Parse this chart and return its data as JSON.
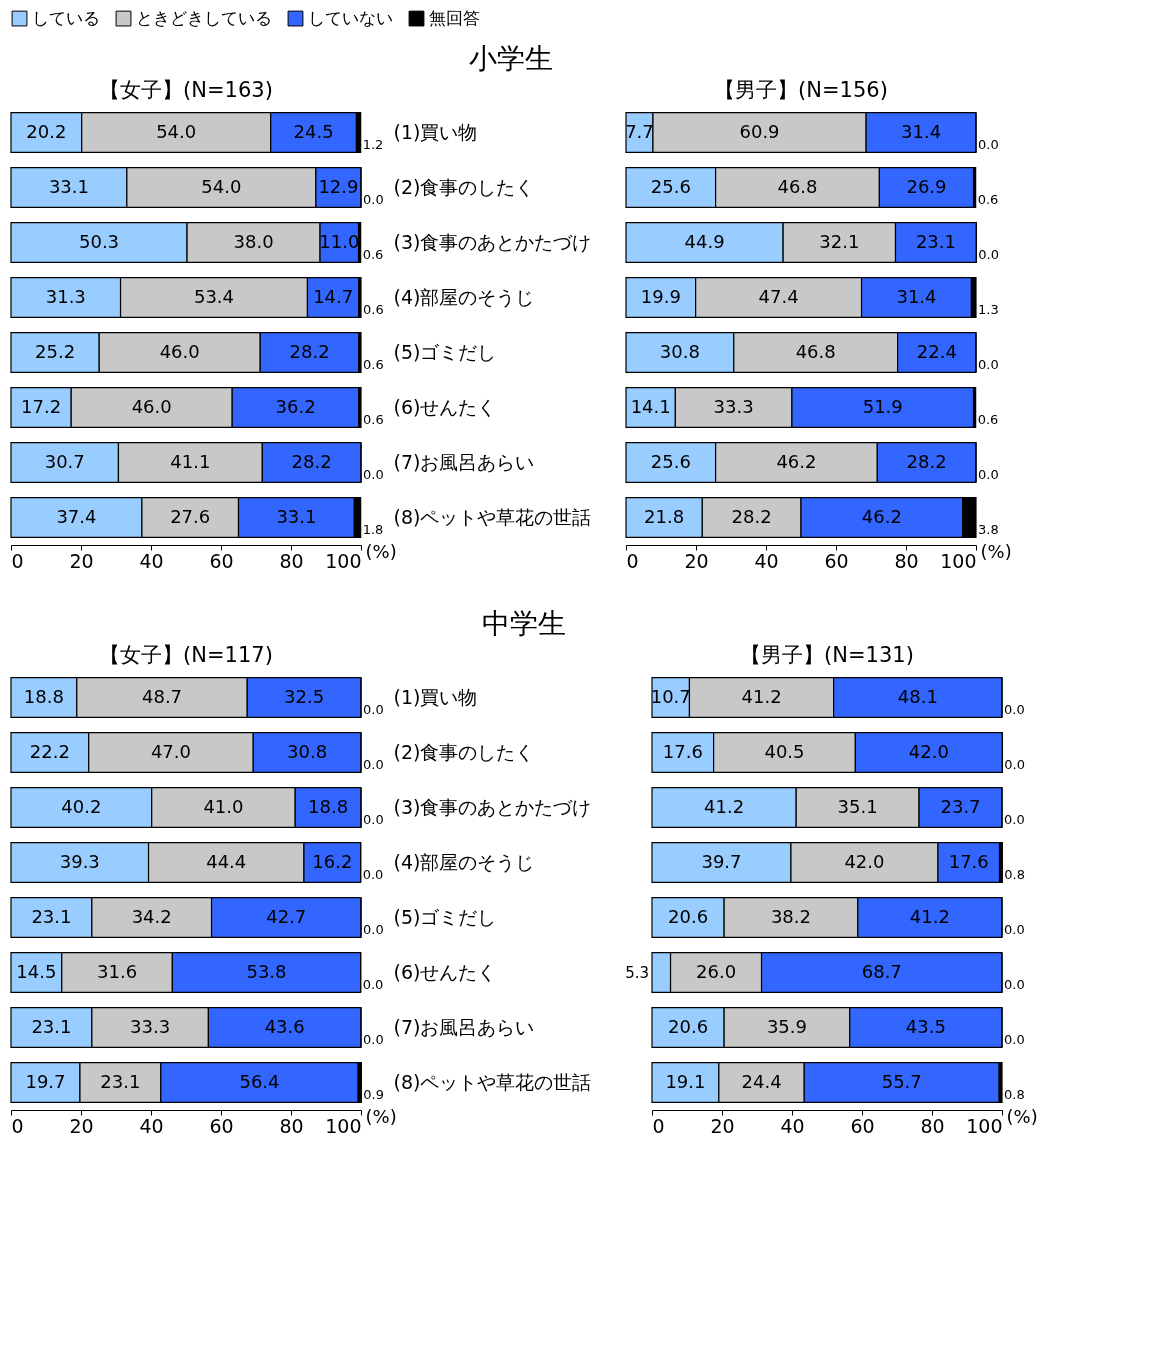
{
  "chart_data": [
    {
      "type": "bar",
      "orientation": "horizontal",
      "stacked": true,
      "title": "【女子】(N=163)",
      "annotations": [
        "小学生"
      ],
      "categories": [
        "(1)買い物",
        "(2)食事のしたく",
        "(3)食事のあとかたづけ",
        "(4)部屋のそうじ",
        "(5)ゴミだし",
        "(6)せんたく",
        "(7)お風呂あらい",
        "(8)ペットや草花の世話"
      ],
      "series": [
        {
          "name": "している",
          "color": "#99ccff",
          "values": [
            20.2,
            33.1,
            50.3,
            31.3,
            25.2,
            17.2,
            30.7,
            37.4
          ],
          "value_labels": [
            "20.2",
            "33.1",
            "50.3",
            "31.3",
            "25.2",
            "17.2",
            "30.7",
            "37.4"
          ]
        },
        {
          "name": "ときどきしている",
          "color": "#c8c8c8",
          "values": [
            54.0,
            54.0,
            38.0,
            53.4,
            46.0,
            46.0,
            41.1,
            27.6
          ],
          "value_labels": [
            "54.0",
            "54.0",
            "38.0",
            "53.4",
            "46.0",
            "46.0",
            "41.1",
            "27.6"
          ]
        },
        {
          "name": "していない",
          "color": "#3366ff",
          "values": [
            24.5,
            12.9,
            11.0,
            14.7,
            28.2,
            36.2,
            28.2,
            33.1
          ],
          "value_labels": [
            "24.5",
            "12.9",
            "11.0",
            "14.7",
            "28.2",
            "36.2",
            "28.2",
            "33.1"
          ]
        },
        {
          "name": "無回答",
          "color": "#000000",
          "values": [
            1.2,
            0.0,
            0.6,
            0.6,
            0.6,
            0.6,
            0.0,
            1.8
          ],
          "value_labels": [
            "1.2",
            "0.0",
            "0.6",
            "0.6",
            "0.6",
            "0.6",
            "0.0",
            "1.8"
          ]
        }
      ],
      "xlim": [
        0,
        100
      ],
      "xticks": [
        0,
        20,
        40,
        60,
        80,
        100
      ],
      "xlabel": "(%)",
      "legend": "top"
    },
    {
      "type": "bar",
      "orientation": "horizontal",
      "stacked": true,
      "title": "【男子】(N=156)",
      "categories": [
        "(1)買い物",
        "(2)食事のしたく",
        "(3)食事のあとかたづけ",
        "(4)部屋のそうじ",
        "(5)ゴミだし",
        "(6)せんたく",
        "(7)お風呂あらい",
        "(8)ペットや草花の世話"
      ],
      "series": [
        {
          "name": "している",
          "color": "#99ccff",
          "values": [
            7.7,
            25.6,
            44.9,
            19.9,
            30.8,
            14.1,
            25.6,
            21.8
          ],
          "value_labels": [
            "7.7",
            "25.6",
            "44.9",
            "19.9",
            "30.8",
            "14.1",
            "25.6",
            "21.8"
          ]
        },
        {
          "name": "ときどきしている",
          "color": "#c8c8c8",
          "values": [
            60.9,
            46.8,
            32.1,
            47.4,
            46.8,
            33.3,
            46.2,
            28.2
          ],
          "value_labels": [
            "60.9",
            "46.8",
            "32.1",
            "47.4",
            "46.8",
            "33.3",
            "46.2",
            "28.2"
          ]
        },
        {
          "name": "していない",
          "color": "#3366ff",
          "values": [
            31.4,
            26.9,
            23.1,
            31.4,
            22.4,
            51.9,
            28.2,
            46.2
          ],
          "value_labels": [
            "31.4",
            "26.9",
            "23.1",
            "31.4",
            "22.4",
            "51.9",
            "28.2",
            "46.2"
          ]
        },
        {
          "name": "無回答",
          "color": "#000000",
          "values": [
            0.0,
            0.6,
            0.0,
            1.3,
            0.0,
            0.6,
            0.0,
            3.8
          ],
          "value_labels": [
            "0.0",
            "0.6",
            "0.0",
            "1.3",
            "0.0",
            "0.6",
            "0.0",
            "3.8"
          ]
        }
      ],
      "xlim": [
        0,
        100
      ],
      "xticks": [
        0,
        20,
        40,
        60,
        80,
        100
      ],
      "xlabel": "(%)",
      "legend": "top",
      "tick_labels": "x"
    },
    {
      "type": "bar",
      "orientation": "horizontal",
      "stacked": true,
      "title": "【女子】(N=117)",
      "annotations": [
        "中学生"
      ],
      "categories": [
        "(1)買い物",
        "(2)食事のしたく",
        "(3)食事のあとかたづけ",
        "(4)部屋のそうじ",
        "(5)ゴミだし",
        "(6)せんたく",
        "(7)お風呂あらい",
        "(8)ペットや草花の世話"
      ],
      "series": [
        {
          "name": "している",
          "color": "#99ccff",
          "values": [
            18.8,
            22.2,
            40.2,
            39.3,
            23.1,
            14.5,
            23.1,
            19.7
          ],
          "value_labels": [
            "18.8",
            "22.2",
            "40.2",
            "39.3",
            "23.1",
            "14.5",
            "23.1",
            "19.7"
          ]
        },
        {
          "name": "ときどきしている",
          "color": "#c8c8c8",
          "values": [
            48.7,
            47.0,
            41.0,
            44.4,
            34.2,
            31.6,
            33.3,
            23.1
          ],
          "value_labels": [
            "48.7",
            "47.0",
            "41.0",
            "44.4",
            "34.2",
            "31.6",
            "33.3",
            "23.1"
          ]
        },
        {
          "name": "していない",
          "color": "#3366ff",
          "values": [
            32.5,
            30.8,
            18.8,
            16.2,
            42.7,
            53.8,
            43.6,
            56.4
          ],
          "value_labels": [
            "32.5",
            "30.8",
            "18.8",
            "16.2",
            "42.7",
            "53.8",
            "43.6",
            "56.4"
          ]
        },
        {
          "name": "無回答",
          "color": "#000000",
          "values": [
            0.0,
            0.0,
            0.0,
            0.0,
            0.0,
            0.0,
            0.0,
            0.9
          ],
          "value_labels": [
            "0.0",
            "0.0",
            "0.0",
            "0.0",
            "0.0",
            "0.0",
            "0.0",
            "0.9"
          ]
        }
      ],
      "xlim": [
        0,
        100
      ],
      "xticks": [
        0,
        20,
        40,
        60,
        80,
        100
      ],
      "xlabel": "(%)",
      "legend": "top"
    },
    {
      "type": "bar",
      "orientation": "horizontal",
      "stacked": true,
      "title": "【男子】(N=131)",
      "categories": [
        "(1)買い物",
        "(2)食事のしたく",
        "(3)食事のあとかたづけ",
        "(4)部屋のそうじ",
        "(5)ゴミだし",
        "(6)せんたく",
        "(7)お風呂あらい",
        "(8)ペットや草花の世話"
      ],
      "series": [
        {
          "name": "している",
          "color": "#99ccff",
          "values": [
            10.7,
            17.6,
            41.2,
            39.7,
            20.6,
            5.3,
            20.6,
            19.1
          ],
          "value_labels": [
            "10.7",
            "17.6",
            "41.2",
            "39.7",
            "20.6",
            "5.3",
            "20.6",
            "19.1"
          ]
        },
        {
          "name": "ときどきしている",
          "color": "#c8c8c8",
          "values": [
            41.2,
            40.5,
            35.1,
            42.0,
            38.2,
            26.0,
            35.9,
            24.4
          ],
          "value_labels": [
            "41.2",
            "40.5",
            "35.1",
            "42.0",
            "38.2",
            "26.0",
            "35.9",
            "24.4"
          ]
        },
        {
          "name": "していない",
          "color": "#3366ff",
          "values": [
            48.1,
            42.0,
            23.7,
            17.6,
            41.2,
            68.7,
            43.5,
            55.7
          ],
          "value_labels": [
            "48.1",
            "42.0",
            "23.7",
            "17.6",
            "41.2",
            "68.7",
            "43.5",
            "55.7"
          ]
        },
        {
          "name": "無回答",
          "color": "#000000",
          "values": [
            0.0,
            0.0,
            0.0,
            0.8,
            0.0,
            0.0,
            0.0,
            0.8
          ],
          "value_labels": [
            "0.0",
            "0.0",
            "0.0",
            "0.8",
            "0.0",
            "0.0",
            "0.0",
            "0.8"
          ]
        }
      ],
      "xlim": [
        0,
        100
      ],
      "xticks": [
        0,
        20,
        40,
        60,
        80,
        100
      ],
      "xlabel": "(%)",
      "legend": "top",
      "tick_labels": "x"
    }
  ]
}
